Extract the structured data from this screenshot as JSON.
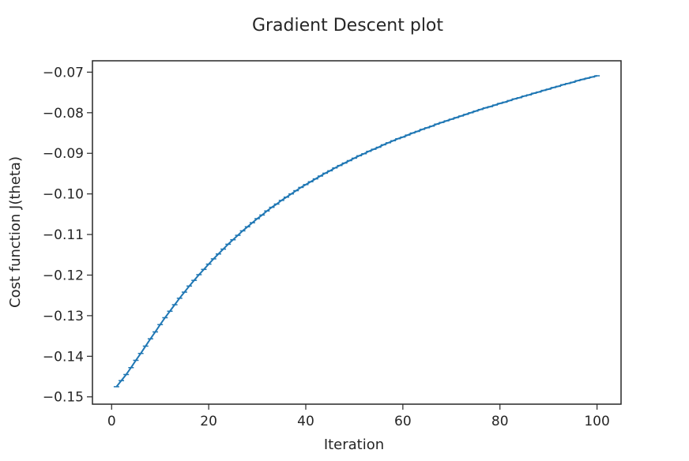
{
  "chart_data": {
    "type": "line",
    "title": "Gradient Descent plot",
    "xlabel": "Iteration",
    "ylabel": "Cost function J(theta)",
    "xlim": [
      -3.95,
      104.95
    ],
    "ylim": [
      -0.1518,
      -0.0672
    ],
    "xticks": [
      {
        "value": 0,
        "label": "0"
      },
      {
        "value": 20,
        "label": "20"
      },
      {
        "value": 40,
        "label": "40"
      },
      {
        "value": 60,
        "label": "60"
      },
      {
        "value": 80,
        "label": "80"
      },
      {
        "value": 100,
        "label": "100"
      }
    ],
    "yticks": [
      {
        "value": -0.15,
        "label": "−0.15"
      },
      {
        "value": -0.14,
        "label": "−0.14"
      },
      {
        "value": -0.13,
        "label": "−0.13"
      },
      {
        "value": -0.12,
        "label": "−0.12"
      },
      {
        "value": -0.11,
        "label": "−0.11"
      },
      {
        "value": -0.1,
        "label": "−0.10"
      },
      {
        "value": -0.09,
        "label": "−0.09"
      },
      {
        "value": -0.08,
        "label": "−0.08"
      },
      {
        "value": -0.07,
        "label": "−0.07"
      }
    ],
    "grid": false,
    "legend": "none",
    "colors": {
      "line": "#1f77b4",
      "axes": "#262626"
    },
    "series": [
      {
        "x": [
          1,
          2,
          3,
          4,
          5,
          6,
          7,
          8,
          9,
          10,
          11,
          12,
          13,
          14,
          15,
          16,
          17,
          18,
          19,
          20,
          21,
          22,
          23,
          24,
          25,
          26,
          27,
          28,
          29,
          30,
          31,
          32,
          33,
          34,
          35,
          36,
          37,
          38,
          39,
          40,
          41,
          42,
          43,
          44,
          45,
          46,
          47,
          48,
          49,
          50,
          51,
          52,
          53,
          54,
          55,
          56,
          57,
          58,
          59,
          60,
          61,
          62,
          63,
          64,
          65,
          66,
          67,
          68,
          69,
          70,
          71,
          72,
          73,
          74,
          75,
          76,
          77,
          78,
          79,
          80,
          81,
          82,
          83,
          84,
          85,
          86,
          87,
          88,
          89,
          90,
          91,
          92,
          93,
          94,
          95,
          96,
          97,
          98,
          99,
          100
        ],
        "y": [
          -0.1475,
          -0.146,
          -0.1445,
          -0.1428,
          -0.141,
          -0.1393,
          -0.1375,
          -0.1357,
          -0.134,
          -0.1322,
          -0.1305,
          -0.1289,
          -0.1273,
          -0.1257,
          -0.1242,
          -0.1227,
          -0.1213,
          -0.1199,
          -0.1186,
          -0.1173,
          -0.116,
          -0.1148,
          -0.1136,
          -0.1124,
          -0.1113,
          -0.1102,
          -0.1091,
          -0.1081,
          -0.1071,
          -0.1061,
          -0.1052,
          -0.1042,
          -0.1033,
          -0.1025,
          -0.1016,
          -0.1008,
          -0.1,
          -0.0992,
          -0.0984,
          -0.0977,
          -0.097,
          -0.0963,
          -0.0956,
          -0.0949,
          -0.0943,
          -0.0936,
          -0.093,
          -0.0924,
          -0.0918,
          -0.0912,
          -0.0906,
          -0.0901,
          -0.0895,
          -0.089,
          -0.0885,
          -0.0879,
          -0.0874,
          -0.0869,
          -0.0864,
          -0.086,
          -0.0855,
          -0.085,
          -0.0846,
          -0.0841,
          -0.0837,
          -0.0833,
          -0.0828,
          -0.0824,
          -0.082,
          -0.0816,
          -0.0812,
          -0.0808,
          -0.0804,
          -0.08,
          -0.0796,
          -0.0792,
          -0.0788,
          -0.0785,
          -0.0781,
          -0.0777,
          -0.0774,
          -0.077,
          -0.0766,
          -0.0763,
          -0.0759,
          -0.0756,
          -0.0752,
          -0.0749,
          -0.0745,
          -0.0742,
          -0.0738,
          -0.0735,
          -0.0731,
          -0.0728,
          -0.0725,
          -0.0721,
          -0.0718,
          -0.0715,
          -0.0712,
          -0.0709
        ]
      }
    ]
  }
}
